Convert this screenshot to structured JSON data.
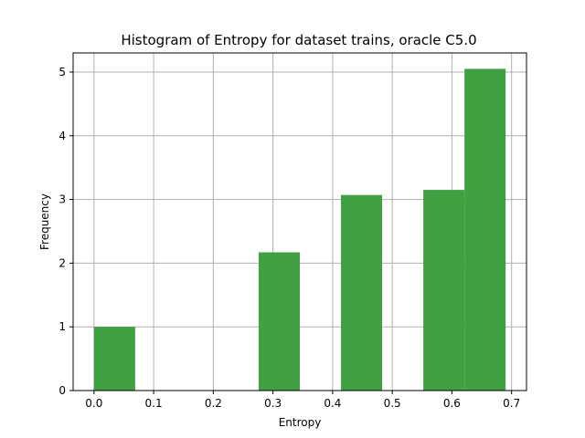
{
  "chart_data": {
    "type": "bar",
    "title": "Histogram of Entropy for dataset trains, oracle C5.0",
    "xlabel": "Entropy",
    "ylabel": "Frequency",
    "xlim": [
      -0.035,
      0.725
    ],
    "ylim": [
      0,
      5.3
    ],
    "xticks": [
      0.0,
      0.1,
      0.2,
      0.3,
      0.4,
      0.5,
      0.6,
      0.7
    ],
    "xtick_labels": [
      "0.0",
      "0.1",
      "0.2",
      "0.3",
      "0.4",
      "0.5",
      "0.6",
      "0.7"
    ],
    "yticks": [
      0,
      1,
      2,
      3,
      4,
      5
    ],
    "ytick_labels": [
      "0",
      "1",
      "2",
      "3",
      "4",
      "5"
    ],
    "grid": true,
    "bar_color": "#41a041",
    "bins": [
      {
        "x0": 0.0,
        "x1": 0.069,
        "value": 1.0
      },
      {
        "x0": 0.069,
        "x1": 0.138,
        "value": 0.0
      },
      {
        "x0": 0.138,
        "x1": 0.207,
        "value": 0.0
      },
      {
        "x0": 0.207,
        "x1": 0.276,
        "value": 0.0
      },
      {
        "x0": 0.276,
        "x1": 0.345,
        "value": 2.17
      },
      {
        "x0": 0.345,
        "x1": 0.414,
        "value": 0.0
      },
      {
        "x0": 0.414,
        "x1": 0.483,
        "value": 3.07
      },
      {
        "x0": 0.483,
        "x1": 0.552,
        "value": 0.0
      },
      {
        "x0": 0.552,
        "x1": 0.621,
        "value": 3.15
      },
      {
        "x0": 0.621,
        "x1": 0.69,
        "value": 5.05
      }
    ]
  }
}
